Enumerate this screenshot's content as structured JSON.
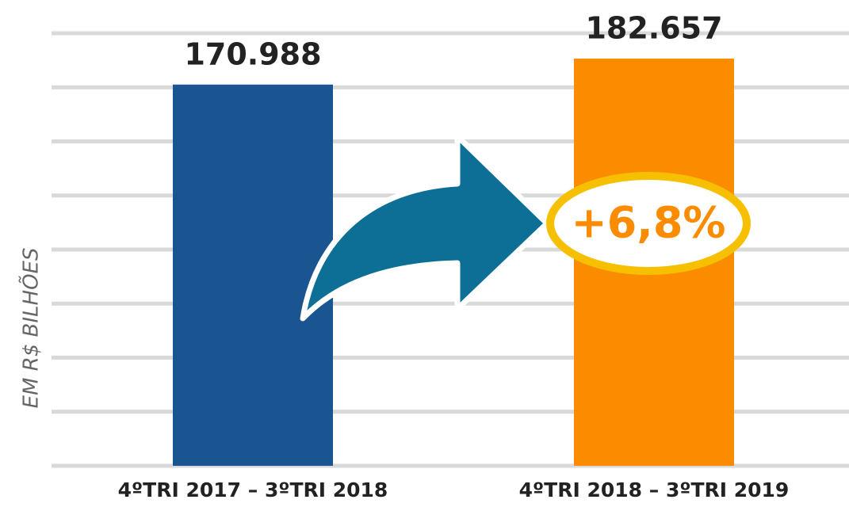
{
  "chart_data": {
    "type": "bar",
    "ylabel": "EM R$ BILHÕES",
    "categories": [
      "4ºTRI 2017 – 3ºTRI 2018",
      "4ºTRI 2018 – 3ºTRI 2019"
    ],
    "values": [
      170988,
      182657
    ],
    "value_labels": [
      "170.988",
      "182.657"
    ],
    "colors": [
      "#1b5591",
      "#fb8c00"
    ],
    "annotation": "+6,8%",
    "ylim": [
      0,
      194000
    ],
    "yticks": [
      0,
      24250,
      48500,
      72750,
      97000,
      121250,
      145500,
      169750,
      194000
    ],
    "grid": true
  }
}
